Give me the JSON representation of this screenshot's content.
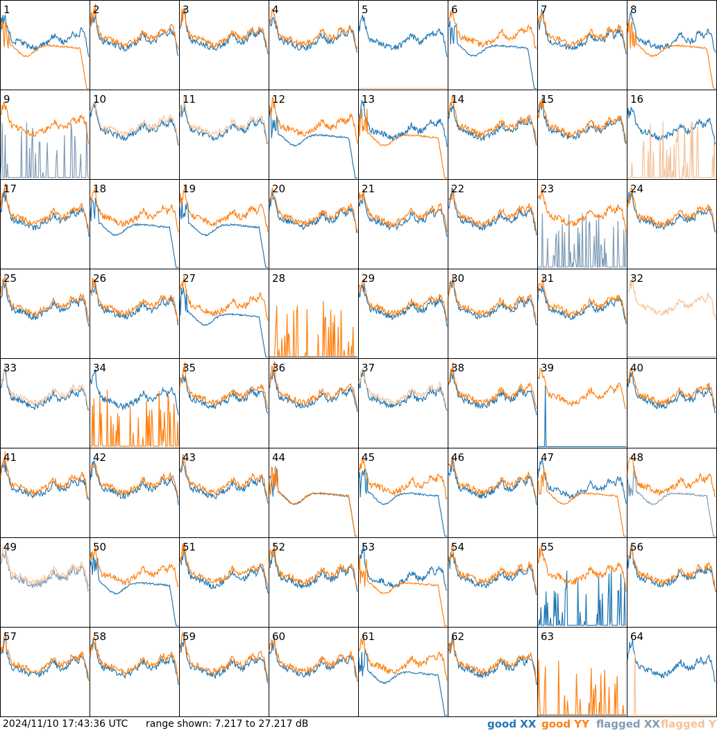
{
  "timestamp": "2024/11/10 17:43:36 UTC",
  "range_text": "range shown: 7.217 to 27.217 dB",
  "legend": {
    "good_xx": "good XX",
    "good_yy": "good YY",
    "flagged_xx": "flagged XX",
    "flagged_yy": "flagged YY"
  },
  "colors": {
    "good_xx": "#1f77b4",
    "good_yy": "#ff7f0e",
    "flagged_xx": "#7f9bb5",
    "flagged_yy": "#f5c197",
    "grid": "#000000"
  },
  "chart_data": {
    "type": "line",
    "layout": "8x8 small multiples",
    "ylim": [
      7.217,
      27.217
    ],
    "yunit": "dB",
    "tiles": [
      {
        "id": "1",
        "xx": "good",
        "yy": "good",
        "xx_shape": "normal",
        "yy_shape": "droop"
      },
      {
        "id": "2",
        "xx": "good",
        "yy": "good",
        "xx_shape": "normal",
        "yy_shape": "normal"
      },
      {
        "id": "3",
        "xx": "good",
        "yy": "good",
        "xx_shape": "normal",
        "yy_shape": "normal"
      },
      {
        "id": "4",
        "xx": "good",
        "yy": "good",
        "xx_shape": "normal",
        "yy_shape": "normal"
      },
      {
        "id": "5",
        "xx": "good",
        "yy": "flagged",
        "xx_shape": "normal",
        "yy_shape": "flat"
      },
      {
        "id": "6",
        "xx": "good",
        "yy": "good",
        "xx_shape": "droop",
        "yy_shape": "normal"
      },
      {
        "id": "7",
        "xx": "good",
        "yy": "good",
        "xx_shape": "normal",
        "yy_shape": "normal"
      },
      {
        "id": "8",
        "xx": "good",
        "yy": "good",
        "xx_shape": "normal",
        "yy_shape": "droop"
      },
      {
        "id": "9",
        "xx": "flagged",
        "yy": "good",
        "xx_shape": "spiky",
        "yy_shape": "normal"
      },
      {
        "id": "10",
        "xx": "good",
        "yy": "flagged",
        "xx_shape": "normal",
        "yy_shape": "normal"
      },
      {
        "id": "11",
        "xx": "good",
        "yy": "flagged",
        "xx_shape": "normal",
        "yy_shape": "normal"
      },
      {
        "id": "12",
        "xx": "good",
        "yy": "good",
        "xx_shape": "droop",
        "yy_shape": "normal"
      },
      {
        "id": "13",
        "xx": "good",
        "yy": "good",
        "xx_shape": "normal",
        "yy_shape": "droop"
      },
      {
        "id": "14",
        "xx": "good",
        "yy": "good",
        "xx_shape": "normal",
        "yy_shape": "normal"
      },
      {
        "id": "15",
        "xx": "good",
        "yy": "good",
        "xx_shape": "normal",
        "yy_shape": "normal"
      },
      {
        "id": "16",
        "xx": "good",
        "yy": "flagged",
        "xx_shape": "normal",
        "yy_shape": "spiky"
      },
      {
        "id": "17",
        "xx": "good",
        "yy": "good",
        "xx_shape": "normal",
        "yy_shape": "normal"
      },
      {
        "id": "18",
        "xx": "good",
        "yy": "good",
        "xx_shape": "droop",
        "yy_shape": "normal"
      },
      {
        "id": "19",
        "xx": "good",
        "yy": "good",
        "xx_shape": "droop",
        "yy_shape": "normal"
      },
      {
        "id": "20",
        "xx": "good",
        "yy": "good",
        "xx_shape": "normal",
        "yy_shape": "normal"
      },
      {
        "id": "21",
        "xx": "good",
        "yy": "good",
        "xx_shape": "normal",
        "yy_shape": "normal"
      },
      {
        "id": "22",
        "xx": "good",
        "yy": "good",
        "xx_shape": "normal",
        "yy_shape": "normal"
      },
      {
        "id": "23",
        "xx": "flagged",
        "yy": "good",
        "xx_shape": "noisy",
        "yy_shape": "normal"
      },
      {
        "id": "24",
        "xx": "good",
        "yy": "good",
        "xx_shape": "normal",
        "yy_shape": "normal"
      },
      {
        "id": "25",
        "xx": "good",
        "yy": "good",
        "xx_shape": "normal",
        "yy_shape": "normal"
      },
      {
        "id": "26",
        "xx": "good",
        "yy": "good",
        "xx_shape": "normal",
        "yy_shape": "normal"
      },
      {
        "id": "27",
        "xx": "good",
        "yy": "good",
        "xx_shape": "droop",
        "yy_shape": "normal"
      },
      {
        "id": "28",
        "xx": "good",
        "yy": "good",
        "xx_shape": "flat",
        "yy_shape": "spiky"
      },
      {
        "id": "29",
        "xx": "good",
        "yy": "good",
        "xx_shape": "normal",
        "yy_shape": "normal"
      },
      {
        "id": "30",
        "xx": "good",
        "yy": "good",
        "xx_shape": "normal",
        "yy_shape": "normal"
      },
      {
        "id": "31",
        "xx": "good",
        "yy": "good",
        "xx_shape": "normal",
        "yy_shape": "normal"
      },
      {
        "id": "32",
        "xx": "flagged",
        "yy": "flagged",
        "xx_shape": "flat",
        "yy_shape": "normal"
      },
      {
        "id": "33",
        "xx": "good",
        "yy": "flagged",
        "xx_shape": "normal",
        "yy_shape": "normal"
      },
      {
        "id": "34",
        "xx": "good",
        "yy": "good",
        "xx_shape": "normal",
        "yy_shape": "spiky"
      },
      {
        "id": "35",
        "xx": "good",
        "yy": "good",
        "xx_shape": "normal",
        "yy_shape": "normal"
      },
      {
        "id": "36",
        "xx": "good",
        "yy": "good",
        "xx_shape": "normal",
        "yy_shape": "normal"
      },
      {
        "id": "37",
        "xx": "good",
        "yy": "flagged",
        "xx_shape": "normal",
        "yy_shape": "normal"
      },
      {
        "id": "38",
        "xx": "good",
        "yy": "good",
        "xx_shape": "normal",
        "yy_shape": "normal"
      },
      {
        "id": "39",
        "xx": "good",
        "yy": "good",
        "xx_shape": "spike",
        "yy_shape": "normal"
      },
      {
        "id": "40",
        "xx": "good",
        "yy": "good",
        "xx_shape": "normal",
        "yy_shape": "normal"
      },
      {
        "id": "41",
        "xx": "good",
        "yy": "good",
        "xx_shape": "normal",
        "yy_shape": "normal"
      },
      {
        "id": "42",
        "xx": "good",
        "yy": "good",
        "xx_shape": "normal",
        "yy_shape": "normal"
      },
      {
        "id": "43",
        "xx": "good",
        "yy": "good",
        "xx_shape": "normal",
        "yy_shape": "normal"
      },
      {
        "id": "44",
        "xx": "good",
        "yy": "good",
        "xx_shape": "droop",
        "yy_shape": "droop"
      },
      {
        "id": "45",
        "xx": "good",
        "yy": "good",
        "xx_shape": "droop",
        "yy_shape": "normal"
      },
      {
        "id": "46",
        "xx": "good",
        "yy": "good",
        "xx_shape": "normal",
        "yy_shape": "normal"
      },
      {
        "id": "47",
        "xx": "good",
        "yy": "good",
        "xx_shape": "normal",
        "yy_shape": "droop"
      },
      {
        "id": "48",
        "xx": "flagged",
        "yy": "good",
        "xx_shape": "droop",
        "yy_shape": "normal"
      },
      {
        "id": "49",
        "xx": "flagged",
        "yy": "flagged",
        "xx_shape": "normal",
        "yy_shape": "normal"
      },
      {
        "id": "50",
        "xx": "good",
        "yy": "good",
        "xx_shape": "droop",
        "yy_shape": "normal"
      },
      {
        "id": "51",
        "xx": "good",
        "yy": "good",
        "xx_shape": "normal",
        "yy_shape": "normal"
      },
      {
        "id": "52",
        "xx": "good",
        "yy": "good",
        "xx_shape": "normal",
        "yy_shape": "normal"
      },
      {
        "id": "53",
        "xx": "good",
        "yy": "good",
        "xx_shape": "normal",
        "yy_shape": "droop"
      },
      {
        "id": "54",
        "xx": "good",
        "yy": "good",
        "xx_shape": "normal",
        "yy_shape": "normal"
      },
      {
        "id": "55",
        "xx": "good",
        "yy": "good",
        "xx_shape": "spiky",
        "yy_shape": "normal"
      },
      {
        "id": "56",
        "xx": "good",
        "yy": "good",
        "xx_shape": "normal",
        "yy_shape": "normal"
      },
      {
        "id": "57",
        "xx": "good",
        "yy": "good",
        "xx_shape": "normal",
        "yy_shape": "normal"
      },
      {
        "id": "58",
        "xx": "good",
        "yy": "good",
        "xx_shape": "normal",
        "yy_shape": "normal"
      },
      {
        "id": "59",
        "xx": "good",
        "yy": "good",
        "xx_shape": "normal",
        "yy_shape": "normal"
      },
      {
        "id": "60",
        "xx": "good",
        "yy": "good",
        "xx_shape": "normal",
        "yy_shape": "normal"
      },
      {
        "id": "61",
        "xx": "good",
        "yy": "good",
        "xx_shape": "droop",
        "yy_shape": "normal"
      },
      {
        "id": "62",
        "xx": "good",
        "yy": "good",
        "xx_shape": "normal",
        "yy_shape": "normal"
      },
      {
        "id": "63",
        "xx": "good",
        "yy": "good",
        "xx_shape": "flat",
        "yy_shape": "spiky"
      },
      {
        "id": "64",
        "xx": "good",
        "yy": "flagged",
        "xx_shape": "normal",
        "yy_shape": "spike"
      }
    ]
  }
}
